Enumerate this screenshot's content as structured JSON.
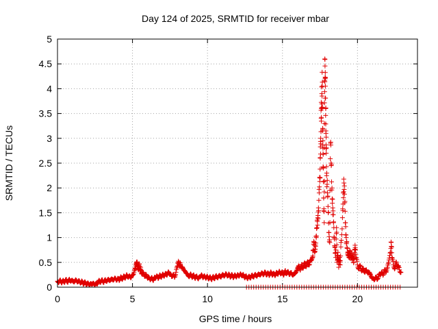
{
  "chart_data": {
    "type": "scatter",
    "title": "Day 124 of 2025, SRMTID for receiver mbar",
    "xlabel": "GPS time / hours",
    "ylabel": "SRMTID / TECUs",
    "xlim": [
      0,
      24
    ],
    "ylim": [
      0,
      5
    ],
    "grid": true,
    "marker": "+",
    "color": "#e00000",
    "xticks": [
      0,
      5,
      10,
      15,
      20
    ],
    "xtick_labels": [
      "0",
      "5",
      "10",
      "15",
      "20"
    ],
    "yticks": [
      0,
      0.5,
      1,
      1.5,
      2,
      2.5,
      3,
      3.5,
      4,
      4.5,
      5
    ],
    "ytick_labels": [
      "0",
      "0.5",
      "1",
      "1.5",
      "2",
      "2.5",
      "3",
      "3.5",
      "4",
      "4.5",
      "5"
    ],
    "series": [
      {
        "name": "SRMTID",
        "points": [
          [
            0.0,
            0.12
          ],
          [
            0.1,
            0.1
          ],
          [
            0.2,
            0.14
          ],
          [
            0.3,
            0.09
          ],
          [
            0.4,
            0.13
          ],
          [
            0.5,
            0.11
          ],
          [
            0.6,
            0.15
          ],
          [
            0.7,
            0.1
          ],
          [
            0.8,
            0.16
          ],
          [
            0.9,
            0.12
          ],
          [
            1.0,
            0.14
          ],
          [
            1.1,
            0.1
          ],
          [
            1.2,
            0.15
          ],
          [
            1.3,
            0.11
          ],
          [
            1.4,
            0.13
          ],
          [
            1.5,
            0.09
          ],
          [
            1.6,
            0.12
          ],
          [
            1.7,
            0.07
          ],
          [
            1.8,
            0.1
          ],
          [
            1.9,
            0.06
          ],
          [
            2.0,
            0.08
          ],
          [
            2.1,
            0.05
          ],
          [
            2.2,
            0.07
          ],
          [
            2.3,
            0.06
          ],
          [
            2.4,
            0.08
          ],
          [
            2.5,
            0.05
          ],
          [
            2.6,
            0.07
          ],
          [
            2.7,
            0.09
          ],
          [
            2.8,
            0.13
          ],
          [
            2.9,
            0.11
          ],
          [
            3.0,
            0.14
          ],
          [
            3.1,
            0.1
          ],
          [
            3.2,
            0.15
          ],
          [
            3.3,
            0.12
          ],
          [
            3.4,
            0.16
          ],
          [
            3.5,
            0.13
          ],
          [
            3.6,
            0.17
          ],
          [
            3.7,
            0.14
          ],
          [
            3.8,
            0.18
          ],
          [
            3.9,
            0.15
          ],
          [
            4.0,
            0.17
          ],
          [
            4.1,
            0.14
          ],
          [
            4.2,
            0.2
          ],
          [
            4.3,
            0.16
          ],
          [
            4.4,
            0.22
          ],
          [
            4.5,
            0.18
          ],
          [
            4.6,
            0.25
          ],
          [
            4.7,
            0.2
          ],
          [
            4.8,
            0.23
          ],
          [
            4.9,
            0.19
          ],
          [
            5.0,
            0.24
          ],
          [
            5.1,
            0.3
          ],
          [
            5.2,
            0.38
          ],
          [
            5.25,
            0.45
          ],
          [
            5.3,
            0.5
          ],
          [
            5.35,
            0.42
          ],
          [
            5.4,
            0.35
          ],
          [
            5.45,
            0.47
          ],
          [
            5.5,
            0.33
          ],
          [
            5.55,
            0.4
          ],
          [
            5.6,
            0.28
          ],
          [
            5.7,
            0.3
          ],
          [
            5.8,
            0.22
          ],
          [
            5.9,
            0.26
          ],
          [
            6.0,
            0.18
          ],
          [
            6.1,
            0.2
          ],
          [
            6.2,
            0.15
          ],
          [
            6.3,
            0.19
          ],
          [
            6.4,
            0.14
          ],
          [
            6.5,
            0.2
          ],
          [
            6.6,
            0.22
          ],
          [
            6.7,
            0.18
          ],
          [
            6.8,
            0.24
          ],
          [
            6.9,
            0.2
          ],
          [
            7.0,
            0.26
          ],
          [
            7.1,
            0.22
          ],
          [
            7.2,
            0.28
          ],
          [
            7.3,
            0.24
          ],
          [
            7.4,
            0.31
          ],
          [
            7.5,
            0.27
          ],
          [
            7.6,
            0.22
          ],
          [
            7.7,
            0.25
          ],
          [
            7.8,
            0.2
          ],
          [
            7.9,
            0.3
          ],
          [
            8.0,
            0.42
          ],
          [
            8.05,
            0.48
          ],
          [
            8.1,
            0.5
          ],
          [
            8.15,
            0.44
          ],
          [
            8.2,
            0.46
          ],
          [
            8.3,
            0.4
          ],
          [
            8.4,
            0.36
          ],
          [
            8.5,
            0.32
          ],
          [
            8.6,
            0.28
          ],
          [
            8.7,
            0.24
          ],
          [
            8.8,
            0.22
          ],
          [
            8.9,
            0.26
          ],
          [
            9.0,
            0.2
          ],
          [
            9.1,
            0.24
          ],
          [
            9.2,
            0.18
          ],
          [
            9.3,
            0.22
          ],
          [
            9.4,
            0.17
          ],
          [
            9.5,
            0.21
          ],
          [
            9.6,
            0.25
          ],
          [
            9.7,
            0.19
          ],
          [
            9.8,
            0.23
          ],
          [
            9.9,
            0.18
          ],
          [
            10.0,
            0.22
          ],
          [
            10.1,
            0.17
          ],
          [
            10.2,
            0.2
          ],
          [
            10.3,
            0.16
          ],
          [
            10.4,
            0.21
          ],
          [
            10.5,
            0.18
          ],
          [
            10.6,
            0.23
          ],
          [
            10.7,
            0.19
          ],
          [
            10.8,
            0.24
          ],
          [
            10.9,
            0.2
          ],
          [
            11.0,
            0.26
          ],
          [
            11.1,
            0.22
          ],
          [
            11.2,
            0.27
          ],
          [
            11.3,
            0.23
          ],
          [
            11.4,
            0.26
          ],
          [
            11.5,
            0.21
          ],
          [
            11.6,
            0.25
          ],
          [
            11.7,
            0.2
          ],
          [
            11.8,
            0.24
          ],
          [
            11.9,
            0.21
          ],
          [
            12.0,
            0.25
          ],
          [
            12.1,
            0.22
          ],
          [
            12.2,
            0.27
          ],
          [
            12.3,
            0.23
          ],
          [
            12.4,
            0.25
          ],
          [
            12.5,
            0.19
          ],
          [
            12.6,
            0.22
          ],
          [
            12.7,
            0.18
          ],
          [
            12.8,
            0.21
          ],
          [
            12.9,
            0.2
          ],
          [
            13.0,
            0.24
          ],
          [
            13.1,
            0.21
          ],
          [
            13.2,
            0.26
          ],
          [
            13.3,
            0.22
          ],
          [
            13.4,
            0.27
          ],
          [
            13.5,
            0.24
          ],
          [
            13.6,
            0.29
          ],
          [
            13.7,
            0.25
          ],
          [
            13.8,
            0.3
          ],
          [
            13.9,
            0.26
          ],
          [
            14.0,
            0.28
          ],
          [
            14.1,
            0.24
          ],
          [
            14.2,
            0.3
          ],
          [
            14.3,
            0.25
          ],
          [
            14.4,
            0.28
          ],
          [
            14.5,
            0.23
          ],
          [
            14.6,
            0.3
          ],
          [
            14.7,
            0.26
          ],
          [
            14.8,
            0.32
          ],
          [
            14.9,
            0.27
          ],
          [
            15.0,
            0.3
          ],
          [
            15.1,
            0.25
          ],
          [
            15.2,
            0.33
          ],
          [
            15.3,
            0.28
          ],
          [
            15.4,
            0.3
          ],
          [
            15.5,
            0.26
          ],
          [
            15.6,
            0.29
          ],
          [
            15.7,
            0.24
          ],
          [
            15.8,
            0.27
          ],
          [
            15.9,
            0.3
          ],
          [
            16.0,
            0.38
          ],
          [
            16.1,
            0.42
          ],
          [
            16.2,
            0.35
          ],
          [
            16.3,
            0.45
          ],
          [
            16.4,
            0.4
          ],
          [
            16.5,
            0.48
          ],
          [
            16.6,
            0.43
          ],
          [
            16.7,
            0.5
          ],
          [
            16.8,
            0.46
          ],
          [
            16.9,
            0.55
          ],
          [
            17.0,
            0.6
          ],
          [
            17.05,
            0.75
          ],
          [
            17.1,
            0.9
          ],
          [
            17.15,
            0.7
          ],
          [
            17.2,
            0.85
          ],
          [
            17.25,
            1.0
          ],
          [
            17.3,
            1.2
          ],
          [
            17.35,
            1.4
          ],
          [
            17.4,
            1.6
          ],
          [
            17.45,
            1.9
          ],
          [
            17.5,
            2.2
          ],
          [
            17.52,
            2.6
          ],
          [
            17.55,
            3.0
          ],
          [
            17.58,
            3.4
          ],
          [
            17.6,
            3.6
          ],
          [
            17.62,
            3.9
          ],
          [
            17.65,
            4.05
          ],
          [
            17.68,
            3.2
          ],
          [
            17.7,
            2.8
          ],
          [
            17.72,
            2.4
          ],
          [
            17.75,
            1.8
          ],
          [
            17.78,
            1.3
          ],
          [
            17.8,
            3.3
          ],
          [
            17.82,
            4.6
          ],
          [
            17.84,
            4.2
          ],
          [
            17.86,
            4.05
          ],
          [
            17.88,
            3.6
          ],
          [
            17.9,
            3.1
          ],
          [
            17.92,
            2.7
          ],
          [
            17.95,
            2.3
          ],
          [
            18.0,
            1.9
          ],
          [
            18.05,
            1.5
          ],
          [
            18.1,
            1.1
          ],
          [
            18.15,
            0.9
          ],
          [
            18.2,
            2.9
          ],
          [
            18.25,
            2.45
          ],
          [
            18.3,
            2.0
          ],
          [
            18.35,
            1.6
          ],
          [
            18.4,
            1.3
          ],
          [
            18.45,
            1.0
          ],
          [
            18.5,
            0.8
          ],
          [
            18.55,
            0.6
          ],
          [
            18.6,
            1.2
          ],
          [
            18.65,
            0.5
          ],
          [
            18.7,
            0.7
          ],
          [
            18.75,
            0.4
          ],
          [
            18.8,
            0.6
          ],
          [
            18.85,
            0.45
          ],
          [
            18.9,
            0.9
          ],
          [
            19.0,
            1.4
          ],
          [
            19.05,
            1.9
          ],
          [
            19.1,
            2.1
          ],
          [
            19.15,
            1.7
          ],
          [
            19.2,
            1.3
          ],
          [
            19.25,
            1.0
          ],
          [
            19.3,
            0.8
          ],
          [
            19.35,
            0.65
          ],
          [
            19.4,
            0.7
          ],
          [
            19.45,
            0.6
          ],
          [
            19.5,
            0.72
          ],
          [
            19.55,
            0.58
          ],
          [
            19.6,
            0.68
          ],
          [
            19.65,
            0.55
          ],
          [
            19.7,
            0.62
          ],
          [
            19.75,
            0.5
          ],
          [
            19.8,
            0.75
          ],
          [
            19.85,
            0.8
          ],
          [
            19.9,
            0.6
          ],
          [
            20.0,
            0.45
          ],
          [
            20.1,
            0.38
          ],
          [
            20.2,
            0.42
          ],
          [
            20.3,
            0.33
          ],
          [
            20.4,
            0.37
          ],
          [
            20.5,
            0.3
          ],
          [
            20.6,
            0.35
          ],
          [
            20.7,
            0.28
          ],
          [
            20.8,
            0.3
          ],
          [
            20.9,
            0.22
          ],
          [
            21.0,
            0.18
          ],
          [
            21.1,
            0.15
          ],
          [
            21.2,
            0.2
          ],
          [
            21.3,
            0.16
          ],
          [
            21.4,
            0.22
          ],
          [
            21.5,
            0.26
          ],
          [
            21.6,
            0.3
          ],
          [
            21.7,
            0.24
          ],
          [
            21.8,
            0.35
          ],
          [
            21.9,
            0.3
          ],
          [
            22.0,
            0.4
          ],
          [
            22.1,
            0.55
          ],
          [
            22.2,
            0.7
          ],
          [
            22.25,
            0.9
          ],
          [
            22.3,
            0.6
          ],
          [
            22.4,
            0.45
          ],
          [
            22.5,
            0.38
          ],
          [
            22.6,
            0.5
          ],
          [
            22.7,
            0.42
          ],
          [
            22.8,
            0.35
          ],
          [
            22.9,
            0.3
          ]
        ]
      }
    ],
    "zero_band_range": [
      12.6,
      23.0
    ]
  }
}
